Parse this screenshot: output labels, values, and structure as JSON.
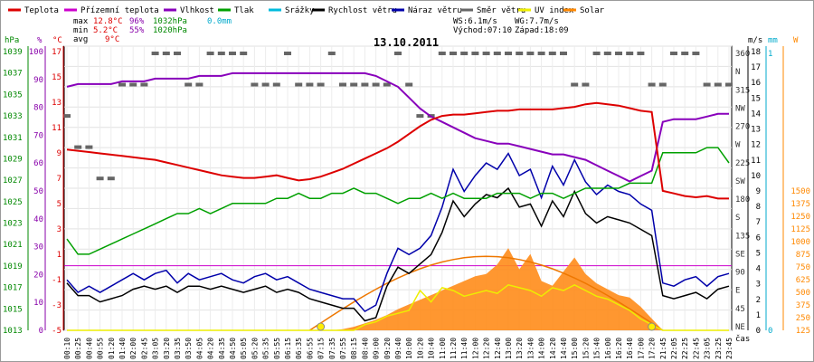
{
  "chart_data": {
    "type": "line",
    "title": "13.10.2011",
    "legend": [
      {
        "name": "Teplota",
        "color": "#dd0000"
      },
      {
        "name": "Přízemní teplota",
        "color": "#cc00cc"
      },
      {
        "name": "Vlhkost",
        "color": "#8800bb"
      },
      {
        "name": "Tlak",
        "color": "#00a000"
      },
      {
        "name": "Srážky",
        "color": "#00bbdd"
      },
      {
        "name": "Rychlost větru",
        "color": "#000000"
      },
      {
        "name": "Náraz větru",
        "color": "#0000aa"
      },
      {
        "name": "Směr větru",
        "color": "#666666"
      },
      {
        "name": "UV index",
        "color": "#eeee00"
      },
      {
        "name": "Solar",
        "color": "#ff8800"
      }
    ],
    "summary": {
      "max_label": "max",
      "min_label": "min",
      "avg_label": "avg",
      "max_temp": "12.8°C",
      "max_hum": "96%",
      "max_press": "1032hPa",
      "precip": "0.0mm",
      "min_temp": "5.2°C",
      "min_hum": "55%",
      "min_press": "1020hPa",
      "avg_temp": "9°C",
      "ws": "WS:6.1m/s",
      "wg": "WG:7.7m/s",
      "sunrise": "Východ:07:10",
      "sunset": "Západ:18:09"
    },
    "axes": {
      "hpa": {
        "unit": "hPa",
        "ticks": [
          "1039",
          "1037",
          "1035",
          "1033",
          "1031",
          "1029",
          "1027",
          "1025",
          "1023",
          "1021",
          "1019",
          "1017",
          "1015",
          "1013"
        ],
        "color": "#008800"
      },
      "pct": {
        "unit": "%",
        "ticks": [
          "100",
          "90",
          "80",
          "70",
          "60",
          "50",
          "40",
          "30",
          "20",
          "10",
          "0"
        ],
        "color": "#8800aa"
      },
      "temp": {
        "unit": "°C",
        "ticks": [
          "17",
          "15",
          "13",
          "11",
          "9",
          "7",
          "5",
          "3",
          "1",
          "-1",
          "-3",
          "-5"
        ],
        "color": "#dd0000"
      },
      "x_label": "čas",
      "x_ticks": [
        "00:10",
        "00:25",
        "00:40",
        "00:55",
        "01:20",
        "01:40",
        "02:00",
        "02:45",
        "03:05",
        "03:20",
        "03:35",
        "03:50",
        "04:05",
        "04:20",
        "04:35",
        "04:50",
        "05:05",
        "05:20",
        "05:35",
        "05:55",
        "06:15",
        "06:35",
        "06:55",
        "07:15",
        "07:35",
        "07:55",
        "08:15",
        "08:40",
        "09:00",
        "09:20",
        "09:40",
        "10:00",
        "10:20",
        "10:40",
        "11:00",
        "11:20",
        "11:40",
        "12:00",
        "12:20",
        "12:40",
        "13:00",
        "13:20",
        "13:40",
        "14:00",
        "14:20",
        "14:40",
        "15:00",
        "15:20",
        "15:40",
        "16:00",
        "16:20",
        "16:40",
        "17:00",
        "17:20",
        "21:45",
        "22:05",
        "22:25",
        "22:45",
        "23:05",
        "23:25",
        "23:45"
      ],
      "ms": {
        "unit": "m/s",
        "ticks": [
          "18",
          "17",
          "16",
          "15",
          "14",
          "13",
          "12",
          "11",
          "10",
          "9",
          "8",
          "7",
          "6",
          "5",
          "4",
          "3",
          "2",
          "1",
          "0"
        ]
      },
      "dir": {
        "ticks": [
          "360",
          "N",
          "315",
          "NW",
          "270",
          "W",
          "225",
          "SW",
          "180",
          "S",
          "135",
          "SE",
          "90",
          "E",
          "45",
          "NE"
        ]
      },
      "mm": {
        "unit": "mm",
        "ticks": [
          "1",
          "0"
        ],
        "color": "#00aacc"
      },
      "w": {
        "unit": "W",
        "ticks": [
          "1500",
          "1375",
          "1250",
          "1125",
          "1000",
          "875",
          "750",
          "625",
          "500",
          "375",
          "250",
          "125"
        ],
        "color": "#ff8800"
      }
    },
    "series": {
      "temperature": [
        9.0,
        8.9,
        8.8,
        8.7,
        8.6,
        8.5,
        8.4,
        8.3,
        8.2,
        8.0,
        7.8,
        7.6,
        7.4,
        7.2,
        7.0,
        6.9,
        6.8,
        6.8,
        6.9,
        7.0,
        6.8,
        6.6,
        6.7,
        6.9,
        7.2,
        7.5,
        7.9,
        8.3,
        8.7,
        9.1,
        9.6,
        10.2,
        10.8,
        11.3,
        11.6,
        11.7,
        11.7,
        11.8,
        11.9,
        12.0,
        12.0,
        12.1,
        12.1,
        12.1,
        12.1,
        12.2,
        12.3,
        12.5,
        12.6,
        12.5,
        12.4,
        12.2,
        12.0,
        11.9,
        5.8,
        5.6,
        5.4,
        5.3,
        5.4,
        5.2,
        5.2
      ],
      "humidity": [
        90,
        91,
        91,
        91,
        91,
        92,
        92,
        92,
        93,
        93,
        93,
        93,
        94,
        94,
        94,
        95,
        95,
        95,
        95,
        95,
        95,
        95,
        95,
        95,
        95,
        95,
        95,
        95,
        94,
        92,
        90,
        86,
        82,
        79,
        77,
        75,
        73,
        71,
        70,
        69,
        69,
        68,
        67,
        66,
        65,
        65,
        64,
        63,
        61,
        59,
        57,
        55,
        57,
        59,
        77,
        78,
        78,
        78,
        79,
        80,
        80
      ],
      "pressure": [
        1022.0,
        1020.5,
        1020.5,
        1021.0,
        1021.5,
        1022.0,
        1022.5,
        1023.0,
        1023.5,
        1024.0,
        1024.5,
        1024.5,
        1025.0,
        1024.5,
        1025.0,
        1025.5,
        1025.5,
        1025.5,
        1025.5,
        1026.0,
        1026.0,
        1026.5,
        1026.0,
        1026.0,
        1026.5,
        1026.5,
        1027.0,
        1026.5,
        1026.5,
        1026.0,
        1025.5,
        1026.0,
        1026.0,
        1026.5,
        1026.0,
        1026.5,
        1026.0,
        1026.0,
        1026.0,
        1026.5,
        1026.5,
        1026.5,
        1026.0,
        1026.5,
        1026.5,
        1026.0,
        1026.5,
        1027.0,
        1027.0,
        1027.0,
        1027.0,
        1027.5,
        1027.5,
        1027.5,
        1030.5,
        1030.5,
        1030.5,
        1030.5,
        1031.0,
        1031.0,
        1029.5
      ],
      "wind_speed": [
        3.0,
        2.2,
        2.2,
        1.8,
        2.0,
        2.2,
        2.6,
        2.8,
        2.6,
        2.8,
        2.4,
        2.8,
        2.8,
        2.6,
        2.8,
        2.6,
        2.4,
        2.6,
        2.8,
        2.4,
        2.6,
        2.4,
        2.0,
        1.8,
        1.6,
        1.4,
        1.4,
        0.6,
        0.8,
        2.8,
        4.0,
        3.6,
        4.2,
        4.8,
        6.2,
        8.2,
        7.2,
        8.0,
        8.6,
        8.4,
        9.0,
        7.8,
        8.0,
        6.6,
        8.2,
        7.2,
        8.8,
        7.4,
        6.8,
        7.2,
        7.0,
        6.8,
        6.4,
        6.0,
        2.2,
        2.0,
        2.2,
        2.4,
        2.0,
        2.6,
        2.8
      ],
      "wind_gust": [
        3.2,
        2.4,
        2.8,
        2.4,
        2.8,
        3.2,
        3.6,
        3.2,
        3.6,
        3.8,
        3.0,
        3.6,
        3.2,
        3.4,
        3.6,
        3.2,
        3.0,
        3.4,
        3.6,
        3.2,
        3.4,
        3.0,
        2.6,
        2.4,
        2.2,
        2.0,
        2.0,
        1.2,
        1.6,
        3.6,
        5.2,
        4.8,
        5.2,
        6.0,
        7.8,
        10.2,
        8.8,
        9.8,
        10.6,
        10.2,
        11.2,
        9.8,
        10.2,
        8.4,
        10.4,
        9.2,
        10.8,
        9.4,
        8.6,
        9.2,
        8.8,
        8.6,
        8.0,
        7.6,
        3.0,
        2.8,
        3.2,
        3.4,
        2.8,
        3.4,
        3.6
      ],
      "solar": [
        0,
        0,
        0,
        0,
        0,
        0,
        0,
        0,
        0,
        0,
        0,
        0,
        0,
        0,
        0,
        0,
        0,
        0,
        0,
        0,
        0,
        0,
        0,
        0,
        0,
        10,
        30,
        60,
        90,
        130,
        180,
        220,
        260,
        300,
        340,
        380,
        420,
        460,
        480,
        560,
        700,
        520,
        650,
        420,
        380,
        500,
        620,
        480,
        400,
        350,
        300,
        280,
        200,
        100,
        0,
        0,
        0,
        0,
        0,
        0,
        0
      ],
      "uv_index": [
        0,
        0,
        0,
        0,
        0,
        0,
        0,
        0,
        0,
        0,
        0,
        0,
        0,
        0,
        0,
        0,
        0,
        0,
        0,
        0,
        0,
        0,
        0,
        0,
        0,
        0,
        0,
        0.2,
        0.3,
        0.5,
        0.6,
        0.7,
        1.4,
        1.0,
        1.5,
        1.4,
        1.2,
        1.3,
        1.4,
        1.3,
        1.6,
        1.5,
        1.4,
        1.2,
        1.5,
        1.4,
        1.6,
        1.4,
        1.2,
        1.1,
        0.9,
        0.7,
        0.4,
        0.2,
        0,
        0,
        0,
        0,
        0,
        0,
        0
      ],
      "wind_dir": [
        270,
        225,
        225,
        180,
        180,
        315,
        315,
        315,
        360,
        360,
        360,
        315,
        315,
        360,
        360,
        360,
        360,
        315,
        315,
        315,
        360,
        315,
        315,
        315,
        360,
        315,
        315,
        315,
        315,
        315,
        360,
        315,
        270,
        270,
        360,
        360,
        360,
        360,
        360,
        360,
        360,
        360,
        360,
        360,
        360,
        360,
        315,
        315,
        360,
        360,
        360,
        360,
        360,
        315,
        315,
        360,
        360,
        360,
        315,
        315,
        315
      ]
    },
    "markers": [
      "sunrise-marker",
      "sunset-marker"
    ]
  }
}
